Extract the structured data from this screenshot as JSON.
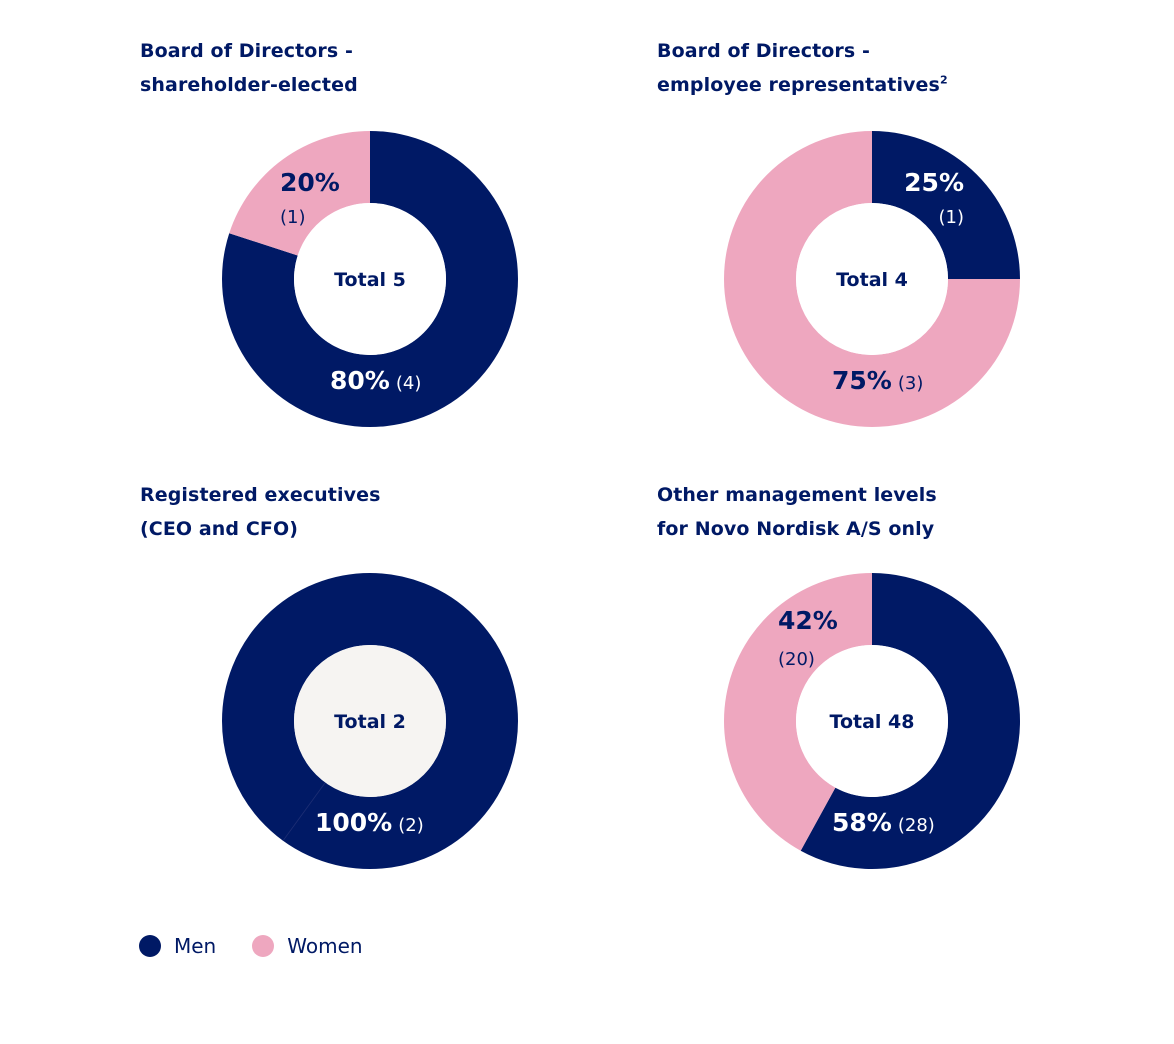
{
  "colors": {
    "men": "#001965",
    "women": "#eea7bf",
    "text": "#001965",
    "label_on_dark": "#ffffff",
    "hole_default": "#ffffff",
    "hole_exec": "#f6f4f2"
  },
  "legend": [
    {
      "label": "Men",
      "key": "men"
    },
    {
      "label": "Women",
      "key": "women"
    }
  ],
  "chart_data": [
    {
      "type": "pie",
      "title_lines": [
        "Board of Directors -",
        "shareholder-elected"
      ],
      "superscript": "",
      "center_label": "Total 5",
      "total": 5,
      "slices": [
        {
          "name": "Men",
          "percent": 80,
          "count": 4,
          "pct_label": "80%",
          "count_label": "(4)"
        },
        {
          "name": "Women",
          "percent": 20,
          "count": 1,
          "pct_label": "20%",
          "count_label": "(1)"
        }
      ]
    },
    {
      "type": "pie",
      "title_lines": [
        "Board of Directors -",
        "employee representatives"
      ],
      "superscript": "2",
      "center_label": "Total 4",
      "total": 4,
      "slices": [
        {
          "name": "Men",
          "percent": 25,
          "count": 1,
          "pct_label": "25%",
          "count_label": "(1)"
        },
        {
          "name": "Women",
          "percent": 75,
          "count": 3,
          "pct_label": "75%",
          "count_label": "(3)"
        }
      ]
    },
    {
      "type": "pie",
      "title_lines": [
        "Registered executives",
        "(CEO and CFO)"
      ],
      "superscript": "",
      "center_label": "Total 2",
      "total": 2,
      "slices": [
        {
          "name": "Men",
          "percent": 100,
          "count": 2,
          "pct_label": "100%",
          "count_label": "(2)"
        }
      ]
    },
    {
      "type": "pie",
      "title_lines": [
        "Other management levels",
        "for Novo Nordisk A/S only"
      ],
      "superscript": "",
      "center_label": "Total 48",
      "total": 48,
      "slices": [
        {
          "name": "Men",
          "percent": 58,
          "count": 28,
          "pct_label": "58%",
          "count_label": "(28)"
        },
        {
          "name": "Women",
          "percent": 42,
          "count": 20,
          "pct_label": "42%",
          "count_label": "(20)"
        }
      ]
    }
  ]
}
